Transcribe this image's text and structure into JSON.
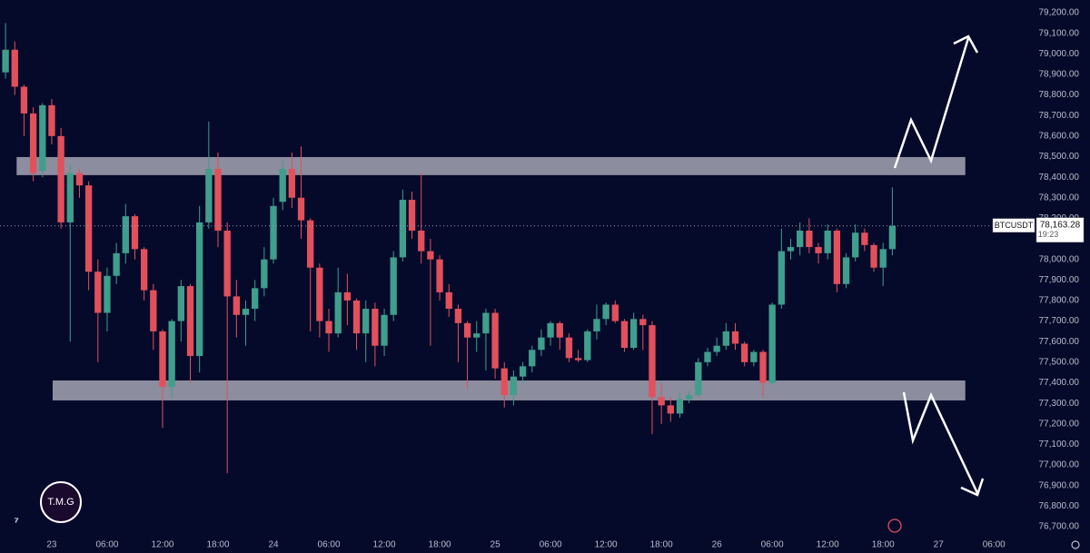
{
  "chart_data": {
    "type": "candlestick",
    "symbol": "BTCUSDT",
    "last_price": 78163.28,
    "last_price_label": "78,163.28",
    "countdown": "19:23",
    "logo": "T.M.G",
    "up_color": "#3f9e8c",
    "down_color": "#e2505b",
    "zone_color": "#a5a5b3",
    "x": [
      -5,
      -4,
      -3,
      -2,
      -1,
      0,
      1,
      2,
      3,
      4,
      5,
      6,
      7,
      8,
      9,
      10,
      11,
      12,
      13,
      14,
      15,
      16,
      17,
      18,
      19,
      20,
      21,
      22,
      23,
      24,
      25,
      26,
      27,
      28,
      29,
      30,
      31,
      32,
      33,
      34,
      35,
      36,
      37,
      38,
      39,
      40,
      41,
      42,
      43,
      44,
      45,
      46,
      47,
      48,
      49,
      50,
      51,
      52,
      53,
      54,
      55,
      56,
      57,
      58,
      59,
      60,
      61,
      62,
      63,
      64,
      65,
      66,
      67,
      68,
      69,
      70,
      71,
      72,
      73,
      74,
      75,
      76,
      77,
      78,
      79,
      80,
      81,
      82,
      83,
      84,
      85,
      86,
      87,
      88,
      89,
      90,
      91
    ],
    "series": [
      {
        "name": "BTCUSDT",
        "open": [
          78910,
          79020,
          78840,
          78710,
          78430,
          78750,
          78600,
          78180,
          78420,
          78360,
          77940,
          77740,
          77920,
          78030,
          78210,
          78050,
          77850,
          77650,
          77380,
          77700,
          77870,
          77530,
          78180,
          78440,
          78140,
          77820,
          77730,
          77760,
          77860,
          78000,
          78280,
          78440,
          78300,
          78190,
          77960,
          77700,
          77640,
          77840,
          77800,
          77640,
          77760,
          77580,
          77730,
          78010,
          78290,
          78140,
          78040,
          78000,
          77840,
          77760,
          77690,
          77620,
          77640,
          77740,
          77470,
          77340,
          77430,
          77480,
          77560,
          77620,
          77690,
          77620,
          77520,
          77510,
          77650,
          77710,
          77780,
          77700,
          77570,
          77710,
          77680,
          77330,
          77290,
          77250,
          77320,
          77340,
          77500,
          77550,
          77580,
          77650,
          77590,
          77500,
          77550,
          77400,
          77780,
          78040,
          78060,
          78140,
          78060,
          78030,
          78140,
          77880,
          78010,
          78130,
          78070,
          77960,
          78050
        ],
        "high": [
          79150,
          79060,
          78850,
          78740,
          78760,
          78780,
          78640,
          78460,
          78440,
          78380,
          78000,
          77960,
          78080,
          78270,
          78220,
          78060,
          77880,
          77660,
          77710,
          77900,
          77880,
          78260,
          78670,
          78520,
          78180,
          77900,
          77800,
          77900,
          78060,
          78300,
          78480,
          78520,
          78550,
          78200,
          77980,
          77760,
          77960,
          77930,
          77810,
          77800,
          77790,
          77760,
          78040,
          78340,
          78330,
          78420,
          78100,
          78020,
          77880,
          77780,
          77700,
          77700,
          77760,
          77760,
          77500,
          77460,
          77500,
          77580,
          77660,
          77700,
          77700,
          77640,
          77560,
          77660,
          77780,
          77790,
          77800,
          77710,
          77740,
          77730,
          77700,
          77400,
          77330,
          77350,
          77360,
          77520,
          77570,
          77620,
          77690,
          77690,
          77600,
          77560,
          77560,
          77790,
          78150,
          78100,
          78180,
          78200,
          78080,
          78170,
          78150,
          78030,
          78170,
          78150,
          78080,
          78080,
          78350
        ],
        "low": [
          78880,
          78800,
          78600,
          78380,
          78400,
          78560,
          78150,
          77600,
          78300,
          77850,
          77500,
          77650,
          77880,
          77980,
          78000,
          77800,
          77560,
          77180,
          77330,
          77600,
          77400,
          77450,
          78150,
          78060,
          76960,
          77620,
          77580,
          77700,
          77820,
          77980,
          78240,
          78250,
          78100,
          77650,
          77620,
          77550,
          77620,
          77680,
          77560,
          77500,
          77480,
          77530,
          77700,
          77990,
          78100,
          77980,
          77580,
          77800,
          77720,
          77500,
          77370,
          77550,
          77460,
          77420,
          77280,
          77290,
          77400,
          77450,
          77530,
          77580,
          77560,
          77500,
          77500,
          77500,
          77610,
          77680,
          77690,
          77550,
          77560,
          77560,
          77150,
          77200,
          77210,
          77230,
          77300,
          77330,
          77480,
          77530,
          77560,
          77560,
          77480,
          77480,
          77330,
          77390,
          77760,
          78000,
          78020,
          78030,
          77980,
          78000,
          77840,
          77860,
          77990,
          78040,
          77940,
          77870,
          78020
        ],
        "close": [
          79020,
          78840,
          78710,
          78420,
          78750,
          78600,
          78180,
          78420,
          78360,
          77940,
          77740,
          77920,
          78030,
          78210,
          78050,
          77850,
          77650,
          77380,
          77700,
          77870,
          77530,
          78180,
          78440,
          78140,
          77820,
          77730,
          77760,
          77860,
          78000,
          78260,
          78440,
          78300,
          78190,
          77960,
          77700,
          77640,
          77840,
          77800,
          77640,
          77760,
          77580,
          77730,
          78010,
          78290,
          78140,
          78040,
          78000,
          77840,
          77760,
          77690,
          77620,
          77640,
          77740,
          77470,
          77340,
          77430,
          77480,
          77560,
          77620,
          77690,
          77620,
          77520,
          77510,
          77650,
          77710,
          77780,
          77700,
          77570,
          77710,
          77680,
          77330,
          77290,
          77250,
          77320,
          77340,
          77500,
          77550,
          77580,
          77650,
          77590,
          77500,
          77550,
          77400,
          77780,
          78040,
          78060,
          78140,
          78060,
          78030,
          78140,
          77880,
          78010,
          78130,
          78070,
          77960,
          78050,
          78163.28
        ]
      }
    ],
    "zones": [
      {
        "low": 78410,
        "high": 78498,
        "start": -3.8,
        "end": 98.9
      },
      {
        "low": 77314,
        "high": 77411,
        "start": 0.1,
        "end": 98.9
      }
    ],
    "xlim": [
      -5.6,
      112.4
    ],
    "xticks": [
      {
        "value": 0,
        "label": "23"
      },
      {
        "value": 6,
        "label": "06:00"
      },
      {
        "value": 12,
        "label": "12:00"
      },
      {
        "value": 18,
        "label": "18:00"
      },
      {
        "value": 24,
        "label": "24"
      },
      {
        "value": 30,
        "label": "06:00"
      },
      {
        "value": 36,
        "label": "12:00"
      },
      {
        "value": 42,
        "label": "18:00"
      },
      {
        "value": 48,
        "label": "25"
      },
      {
        "value": 54,
        "label": "06:00"
      },
      {
        "value": 60,
        "label": "12:00"
      },
      {
        "value": 66,
        "label": "18:00"
      },
      {
        "value": 72,
        "label": "26"
      },
      {
        "value": 78,
        "label": "06:00"
      },
      {
        "value": 84,
        "label": "12:00"
      },
      {
        "value": 90,
        "label": "18:00"
      },
      {
        "value": 96,
        "label": "27"
      },
      {
        "value": 102,
        "label": "06:00"
      }
    ],
    "ylim": [
      76660,
      79262
    ],
    "yticks": [
      {
        "value": 76700,
        "label": "76,700.00"
      },
      {
        "value": 76800,
        "label": "76,800.00"
      },
      {
        "value": 76900,
        "label": "76,900.00"
      },
      {
        "value": 77000,
        "label": "77,000.00"
      },
      {
        "value": 77100,
        "label": "77,100.00"
      },
      {
        "value": 77200,
        "label": "77,200.00"
      },
      {
        "value": 77300,
        "label": "77,300.00"
      },
      {
        "value": 77400,
        "label": "77,400.00"
      },
      {
        "value": 77500,
        "label": "77,500.00"
      },
      {
        "value": 77600,
        "label": "77,600.00"
      },
      {
        "value": 77700,
        "label": "77,700.00"
      },
      {
        "value": 77800,
        "label": "77,800.00"
      },
      {
        "value": 77900,
        "label": "77,900.00"
      },
      {
        "value": 78000,
        "label": "78,000.00"
      },
      {
        "value": 78100,
        "label": "78,100.00"
      },
      {
        "value": 78200,
        "label": "78,200.00"
      },
      {
        "value": 78300,
        "label": "78,300.00"
      },
      {
        "value": 78400,
        "label": "78,400.00"
      },
      {
        "value": 78500,
        "label": "78,500.00"
      },
      {
        "value": 78600,
        "label": "78,600.00"
      },
      {
        "value": 78700,
        "label": "78,700.00"
      },
      {
        "value": 78800,
        "label": "78,800.00"
      },
      {
        "value": 78900,
        "label": "78,900.00"
      },
      {
        "value": 79000,
        "label": "79,000.00"
      },
      {
        "value": 79100,
        "label": "79,100.00"
      },
      {
        "value": 79200,
        "label": "79,200.00"
      }
    ]
  }
}
